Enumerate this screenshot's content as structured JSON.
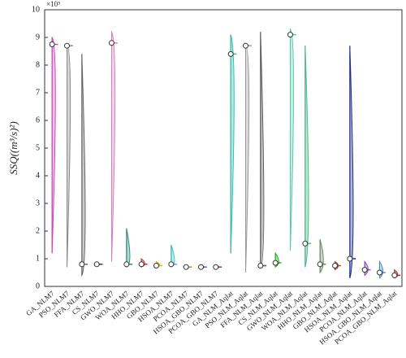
{
  "chart_data": {
    "type": "violin",
    "ylabel": "SSQ((m³/s)²)",
    "yexponent": "×10⁵",
    "categories": [
      "GA_NLM7",
      "PSO_NLM7",
      "FFA_NLM7",
      "CS_NLM7",
      "GWO_NLM7",
      "WOA_NLM7",
      "HHO_NLM7",
      "GBO_NLM7",
      "HSOA_NLM7",
      "PCOA_NLM7",
      "HSOA_GBO_NLM7",
      "PCOA_GBO_NLM7",
      "GA_NLM_Aqlat",
      "PSO_NLM_Aqlat",
      "FFA_NLM_Aqlat",
      "CS_NLM_Aqlat",
      "GWO_NLM_Aqlat",
      "WOA_NLM_Aqlat",
      "HHO_NLM_Aqlat",
      "GBO_NLM_Aqlat",
      "HSOA_NLM_Aqlat",
      "PCOA_NLM_Aqlat",
      "HSOA_GBO_NLM_Aqlat",
      "PCOA_GBO_NLM_Aqlat"
    ],
    "mean": [
      8.75,
      8.7,
      0.8,
      0.8,
      8.8,
      0.8,
      0.8,
      0.75,
      0.8,
      0.7,
      0.7,
      0.7,
      8.4,
      8.7,
      0.75,
      0.85,
      9.1,
      1.55,
      0.8,
      0.75,
      1.0,
      0.6,
      0.5,
      0.4
    ],
    "min": [
      1.2,
      0.7,
      0.4,
      0.75,
      0.9,
      0.7,
      0.7,
      0.7,
      0.7,
      0.65,
      0.65,
      0.65,
      1.2,
      0.5,
      0.7,
      0.7,
      1.3,
      0.7,
      0.5,
      0.6,
      0.3,
      0.4,
      0.3,
      0.3
    ],
    "max": [
      9.0,
      8.7,
      8.4,
      0.85,
      9.2,
      2.1,
      1.0,
      0.9,
      1.5,
      0.75,
      0.75,
      0.75,
      9.1,
      8.7,
      9.2,
      1.2,
      9.3,
      8.7,
      1.7,
      0.9,
      8.7,
      0.9,
      0.9,
      0.6
    ],
    "colors": [
      "#d43fbf",
      "#888888",
      "#666666",
      "#444444",
      "#e07ab8",
      "#2a8f7a",
      "#c0392b",
      "#e0b020",
      "#40c0c0",
      "#e08040",
      "#5a6aa0",
      "#b03030",
      "#30c0b0",
      "#999999",
      "#555555",
      "#20b020",
      "#50d0a0",
      "#40c080",
      "#6a8a6a",
      "#a04040",
      "#1a2a8a",
      "#8a4ab0",
      "#4a8ad0",
      "#a03030"
    ],
    "ylim": [
      0,
      10
    ],
    "yticks": [
      0,
      1,
      2,
      3,
      4,
      5,
      6,
      7,
      8,
      9,
      10
    ]
  }
}
